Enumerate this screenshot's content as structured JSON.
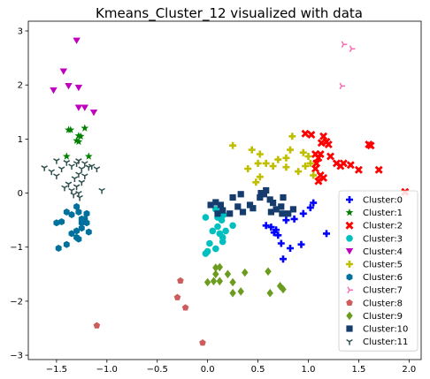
{
  "chart_data": {
    "type": "scatter",
    "title": "Kmeans_Cluster_12 visualized with data",
    "xlabel": "",
    "ylabel": "",
    "xlim": [
      -1.78,
      2.12
    ],
    "ylim": [
      -3.08,
      3.18
    ],
    "xticks": [
      -1.5,
      -1.0,
      -0.5,
      0.0,
      0.5,
      1.0,
      1.5,
      2.0
    ],
    "xtick_labels": [
      "−1.5",
      "−1.0",
      "−0.5",
      "0.0",
      "0.5",
      "1.0",
      "1.5",
      "2.0"
    ],
    "yticks": [
      -3,
      -2,
      -1,
      0,
      1,
      2,
      3
    ],
    "ytick_labels": [
      "−3",
      "−2",
      "−1",
      "0",
      "1",
      "2",
      "3"
    ],
    "grid": false,
    "legend": "lower-right",
    "series": [
      {
        "name": "Cluster:0",
        "color": "#0000ff",
        "marker": "plus",
        "points": [
          [
            0.58,
            -0.6
          ],
          [
            0.63,
            -0.63
          ],
          [
            0.66,
            -0.73
          ],
          [
            0.7,
            -0.78
          ],
          [
            0.68,
            -0.68
          ],
          [
            0.73,
            -0.93
          ],
          [
            0.78,
            -0.5
          ],
          [
            0.86,
            -0.48
          ],
          [
            0.95,
            -0.38
          ],
          [
            1.02,
            -0.27
          ],
          [
            1.05,
            -0.18
          ],
          [
            0.82,
            -1.02
          ],
          [
            0.75,
            -1.22
          ],
          [
            0.93,
            -0.95
          ],
          [
            1.18,
            -0.75
          ]
        ]
      },
      {
        "name": "Cluster:1",
        "color": "#008000",
        "marker": "star",
        "points": [
          [
            -1.38,
            1.17
          ],
          [
            -1.36,
            1.17
          ],
          [
            -1.28,
            1.06
          ],
          [
            -1.3,
            0.97
          ],
          [
            -1.26,
            1.05
          ],
          [
            -1.22,
            1.2
          ],
          [
            -1.28,
            0.95
          ],
          [
            -1.18,
            0.68
          ],
          [
            -1.4,
            0.68
          ]
        ]
      },
      {
        "name": "Cluster:2",
        "color": "#ff0000",
        "marker": "x",
        "points": [
          [
            0.97,
            1.1
          ],
          [
            1.03,
            1.08
          ],
          [
            1.13,
            0.93
          ],
          [
            1.15,
            1.05
          ],
          [
            1.18,
            0.95
          ],
          [
            1.2,
            0.9
          ],
          [
            1.12,
            0.72
          ],
          [
            1.07,
            0.72
          ],
          [
            1.1,
            0.65
          ],
          [
            1.08,
            0.55
          ],
          [
            1.07,
            0.45
          ],
          [
            1.12,
            0.33
          ],
          [
            1.1,
            0.22
          ],
          [
            1.15,
            0.28
          ],
          [
            1.22,
            0.68
          ],
          [
            1.28,
            0.55
          ],
          [
            1.35,
            0.55
          ],
          [
            1.42,
            0.52
          ],
          [
            1.5,
            0.43
          ],
          [
            1.6,
            0.9
          ],
          [
            1.62,
            0.88
          ],
          [
            1.7,
            0.43
          ],
          [
            1.96,
            0.02
          ],
          [
            1.32,
            0.5
          ]
        ]
      },
      {
        "name": "Cluster:3",
        "color": "#00bfbf",
        "marker": "circle",
        "points": [
          [
            0.08,
            -0.3
          ],
          [
            0.1,
            -0.45
          ],
          [
            0.12,
            -0.35
          ],
          [
            0.14,
            -0.5
          ],
          [
            0.16,
            -0.4
          ],
          [
            0.1,
            -0.62
          ],
          [
            0.12,
            -0.75
          ],
          [
            0.15,
            -0.82
          ],
          [
            0.18,
            -0.7
          ],
          [
            0.25,
            -0.6
          ],
          [
            0.05,
            -0.7
          ],
          [
            0.02,
            -0.93
          ],
          [
            0.0,
            -1.08
          ],
          [
            -0.02,
            -1.12
          ],
          [
            0.08,
            -1.03
          ],
          [
            0.15,
            -0.9
          ],
          [
            -0.02,
            -0.45
          ]
        ]
      },
      {
        "name": "Cluster:4",
        "color": "#bf00bf",
        "marker": "triangle",
        "points": [
          [
            -1.3,
            2.82
          ],
          [
            -1.43,
            2.25
          ],
          [
            -1.38,
            1.98
          ],
          [
            -1.53,
            1.9
          ],
          [
            -1.28,
            1.95
          ],
          [
            -1.28,
            1.58
          ],
          [
            -1.22,
            1.58
          ],
          [
            -1.13,
            1.49
          ]
        ]
      },
      {
        "name": "Cluster:5",
        "color": "#bfbf00",
        "marker": "plus",
        "points": [
          [
            0.25,
            0.88
          ],
          [
            0.44,
            0.8
          ],
          [
            0.52,
            0.72
          ],
          [
            0.5,
            0.55
          ],
          [
            0.58,
            0.55
          ],
          [
            0.65,
            0.5
          ],
          [
            0.7,
            0.62
          ],
          [
            0.78,
            0.65
          ],
          [
            0.82,
            0.8
          ],
          [
            0.84,
            1.05
          ],
          [
            0.78,
            0.48
          ],
          [
            0.9,
            0.4
          ],
          [
            0.97,
            0.5
          ],
          [
            1.0,
            0.68
          ],
          [
            1.02,
            0.55
          ],
          [
            1.05,
            0.33
          ],
          [
            0.52,
            0.3
          ],
          [
            0.48,
            0.2
          ],
          [
            0.4,
            0.45
          ],
          [
            0.95,
            0.75
          ]
        ]
      },
      {
        "name": "Cluster:6",
        "color": "#00709c",
        "marker": "hexagon",
        "points": [
          [
            -1.4,
            -0.35
          ],
          [
            -1.35,
            -0.4
          ],
          [
            -1.3,
            -0.25
          ],
          [
            -1.28,
            -0.35
          ],
          [
            -1.25,
            -0.48
          ],
          [
            -1.2,
            -0.55
          ],
          [
            -1.22,
            -0.48
          ],
          [
            -1.2,
            -0.38
          ],
          [
            -1.18,
            -0.72
          ],
          [
            -1.25,
            -0.65
          ],
          [
            -1.3,
            -0.7
          ],
          [
            -1.35,
            -0.75
          ],
          [
            -1.3,
            -0.82
          ],
          [
            -1.28,
            -0.85
          ],
          [
            -1.45,
            -0.53
          ],
          [
            -1.5,
            -0.55
          ],
          [
            -1.4,
            -0.95
          ],
          [
            -1.48,
            -1.02
          ],
          [
            -1.25,
            -0.55
          ]
        ]
      },
      {
        "name": "Cluster:7",
        "color": "#ff69b4",
        "marker": "tri-right",
        "points": [
          [
            1.35,
            2.75
          ],
          [
            1.43,
            2.67
          ],
          [
            1.33,
            1.98
          ]
        ]
      },
      {
        "name": "Cluster:8",
        "color": "#cd5c5c",
        "marker": "pentagon",
        "points": [
          [
            -0.27,
            -1.62
          ],
          [
            -0.3,
            -1.93
          ],
          [
            -0.22,
            -2.12
          ],
          [
            -0.05,
            -2.77
          ],
          [
            -1.1,
            -2.45
          ]
        ]
      },
      {
        "name": "Cluster:9",
        "color": "#6b9c1e",
        "marker": "diamond",
        "points": [
          [
            0.08,
            -1.38
          ],
          [
            0.12,
            -1.37
          ],
          [
            0.08,
            -1.5
          ],
          [
            0.0,
            -1.65
          ],
          [
            0.06,
            -1.63
          ],
          [
            0.12,
            -1.63
          ],
          [
            0.2,
            -1.5
          ],
          [
            0.25,
            -1.65
          ],
          [
            0.25,
            -1.85
          ],
          [
            0.33,
            -1.82
          ],
          [
            0.6,
            -1.45
          ],
          [
            0.62,
            -1.85
          ],
          [
            0.72,
            -1.72
          ],
          [
            0.75,
            -1.78
          ],
          [
            0.37,
            -1.47
          ]
        ]
      },
      {
        "name": "Cluster:10",
        "color": "#163c6e",
        "marker": "square",
        "points": [
          [
            0.03,
            -0.22
          ],
          [
            0.08,
            -0.17
          ],
          [
            0.13,
            -0.22
          ],
          [
            0.22,
            -0.38
          ],
          [
            0.25,
            -0.08
          ],
          [
            0.33,
            -0.02
          ],
          [
            0.3,
            -0.25
          ],
          [
            0.35,
            -0.35
          ],
          [
            0.42,
            -0.22
          ],
          [
            0.45,
            -0.28
          ],
          [
            0.52,
            -0.08
          ],
          [
            0.53,
            0.0
          ],
          [
            0.56,
            -0.02
          ],
          [
            0.58,
            0.05
          ],
          [
            0.62,
            -0.12
          ],
          [
            0.65,
            -0.18
          ],
          [
            0.63,
            -0.35
          ],
          [
            0.68,
            -0.3
          ],
          [
            0.73,
            -0.25
          ],
          [
            0.74,
            -0.38
          ],
          [
            0.8,
            -0.38
          ],
          [
            0.85,
            -0.3
          ],
          [
            0.15,
            -0.32
          ],
          [
            0.1,
            -0.38
          ],
          [
            0.75,
            -0.08
          ]
        ]
      },
      {
        "name": "Cluster:11",
        "color": "#2f4f4f",
        "marker": "tri-down",
        "points": [
          [
            -1.62,
            0.47
          ],
          [
            -1.5,
            0.6
          ],
          [
            -1.4,
            0.57
          ],
          [
            -1.35,
            0.5
          ],
          [
            -1.3,
            0.55
          ],
          [
            -1.28,
            0.6
          ],
          [
            -1.25,
            0.45
          ],
          [
            -1.22,
            0.55
          ],
          [
            -1.18,
            0.48
          ],
          [
            -1.15,
            0.5
          ],
          [
            -1.1,
            0.45
          ],
          [
            -1.28,
            0.35
          ],
          [
            -1.32,
            0.27
          ],
          [
            -1.38,
            0.17
          ],
          [
            -1.42,
            0.1
          ],
          [
            -1.35,
            0.05
          ],
          [
            -1.3,
            0.12
          ],
          [
            -1.25,
            0.2
          ],
          [
            -1.28,
            0.0
          ],
          [
            -1.33,
            -0.03
          ],
          [
            -1.27,
            -0.08
          ],
          [
            -1.5,
            0.32
          ],
          [
            -1.55,
            0.4
          ],
          [
            -1.45,
            0.45
          ],
          [
            -1.05,
            0.05
          ],
          [
            -1.22,
            0.32
          ]
        ]
      }
    ]
  }
}
